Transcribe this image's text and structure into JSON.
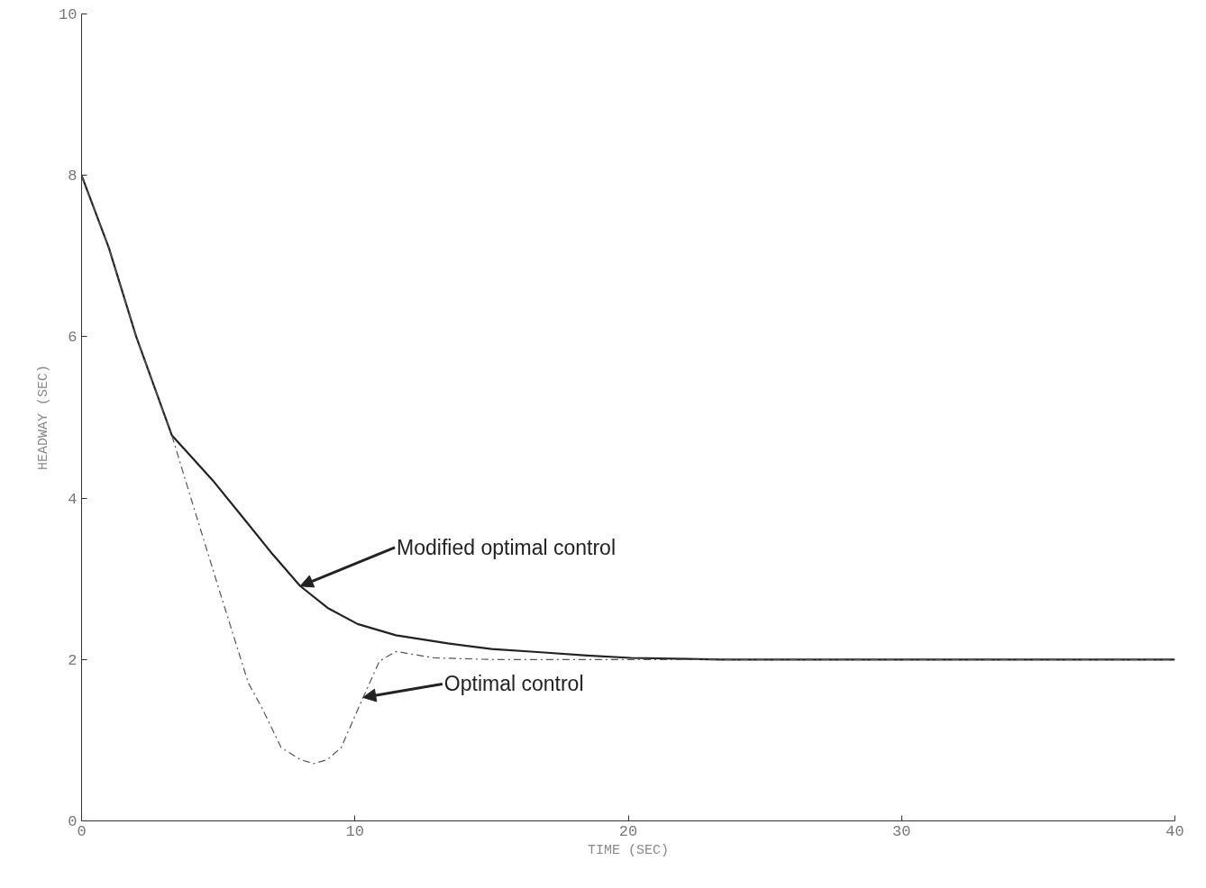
{
  "chart_data": {
    "type": "line",
    "xlabel": "TIME (SEC)",
    "ylabel": "HEADWAY (SEC)",
    "xlim": [
      0,
      40
    ],
    "ylim": [
      0,
      10
    ],
    "xticks": [
      0,
      10,
      20,
      30,
      40
    ],
    "yticks": [
      0,
      2,
      4,
      6,
      8,
      10
    ],
    "grid": false,
    "marker": "none",
    "series": [
      {
        "color": "#222222",
        "line_style": "solid",
        "x": [
          0,
          1,
          2,
          3.3,
          4.8,
          6,
          7,
          8,
          9,
          10.1,
          11.5,
          13.4,
          15,
          16.8,
          18.5,
          20.1,
          23.4,
          30,
          40
        ],
        "values": [
          8.0,
          7.1,
          6.0,
          4.78,
          4.22,
          3.72,
          3.3,
          2.91,
          2.64,
          2.44,
          2.3,
          2.2,
          2.13,
          2.09,
          2.05,
          2.02,
          2.0,
          2.0,
          2.0
        ]
      },
      {
        "color": "#555555",
        "line_style": "dashed",
        "x": [
          0,
          1,
          2,
          3.3,
          4.1,
          5,
          6.1,
          6.6,
          7.3,
          8,
          8.5,
          9,
          9.5,
          10.3,
          10.9,
          11.5,
          12.2,
          12.9,
          15,
          20,
          30,
          40
        ],
        "values": [
          8.0,
          7.1,
          6.0,
          4.78,
          3.89,
          2.9,
          1.71,
          1.4,
          0.91,
          0.76,
          0.71,
          0.76,
          0.91,
          1.53,
          1.98,
          2.1,
          2.06,
          2.02,
          2.0,
          2.0,
          2.0,
          2.0
        ]
      }
    ],
    "annotations": [
      {
        "text": "Modified optimal control",
        "x": 8.0,
        "y": 2.91
      },
      {
        "text": "Optimal control",
        "x": 10.3,
        "y": 1.53
      }
    ]
  }
}
